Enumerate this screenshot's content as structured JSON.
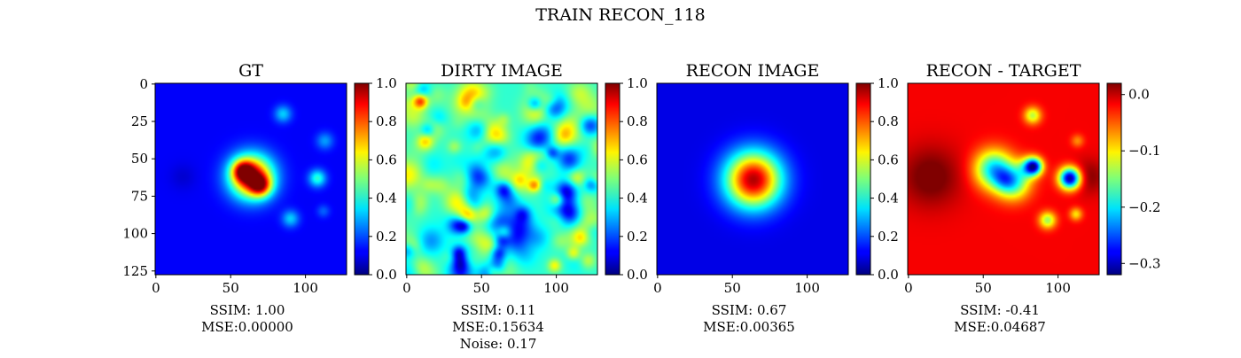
{
  "chart_data": {
    "type": "heatmap",
    "title": "TRAIN RECON_118",
    "colormap": "jet",
    "panels": [
      {
        "id": "gt",
        "title": "GT",
        "axis_ticks": [
          0,
          50,
          100
        ],
        "y_ticks": [
          0,
          25,
          50,
          75,
          100,
          125
        ],
        "show_y_ticks": true,
        "colorbar": {
          "range": [
            0.0,
            1.0
          ],
          "ticks": [
            0.0,
            0.2,
            0.4,
            0.6,
            0.8,
            1.0
          ],
          "tick_labels": [
            "0.0",
            "0.2",
            "0.4",
            "0.6",
            "0.8",
            "1.0"
          ]
        },
        "caption": [
          "SSIM: 1.00",
          "MSE:0.00000"
        ],
        "background": 0.12,
        "features": [
          {
            "cx": 64,
            "cy": 62,
            "r": 10,
            "v": 0.95
          },
          {
            "cx": 58,
            "cy": 58,
            "r": 5,
            "v": 0.55
          },
          {
            "cx": 70,
            "cy": 68,
            "r": 5,
            "v": 0.55
          },
          {
            "cx": 85,
            "cy": 20,
            "r": 4,
            "v": 0.33
          },
          {
            "cx": 108,
            "cy": 63,
            "r": 4,
            "v": 0.42
          },
          {
            "cx": 113,
            "cy": 38,
            "r": 4,
            "v": 0.28
          },
          {
            "cx": 90,
            "cy": 90,
            "r": 4,
            "v": 0.33
          },
          {
            "cx": 112,
            "cy": 85,
            "r": 3,
            "v": 0.22
          },
          {
            "cx": 18,
            "cy": 62,
            "r": 6,
            "v": 0.08
          }
        ]
      },
      {
        "id": "dirty",
        "title": "DIRTY IMAGE",
        "axis_ticks": [
          0,
          50,
          100
        ],
        "y_ticks": [
          0,
          25,
          50,
          75,
          100,
          125
        ],
        "show_y_ticks": false,
        "colorbar": {
          "range": [
            0.0,
            1.0
          ],
          "ticks": [
            0.0,
            0.2,
            0.4,
            0.6,
            0.8,
            1.0
          ],
          "tick_labels": [
            "0.0",
            "0.2",
            "0.4",
            "0.6",
            "0.8",
            "1.0"
          ]
        },
        "caption": [
          "SSIM: 0.11",
          "MSE:0.15634",
          "Noise: 0.17"
        ],
        "background": 0.42,
        "noise": {
          "seed": 118,
          "count": 150,
          "amp": 0.28,
          "r": 5
        },
        "features": [
          {
            "cx": 64,
            "cy": 58,
            "r": 6,
            "v": 0.55
          }
        ]
      },
      {
        "id": "recon",
        "title": "RECON IMAGE",
        "axis_ticks": [
          0,
          50,
          100
        ],
        "y_ticks": [
          0,
          25,
          50,
          75,
          100,
          125
        ],
        "show_y_ticks": false,
        "colorbar": {
          "range": [
            0.0,
            1.0
          ],
          "ticks": [
            0.0,
            0.2,
            0.4,
            0.6,
            0.8,
            1.0
          ],
          "tick_labels": [
            "0.0",
            "0.2",
            "0.4",
            "0.6",
            "0.8",
            "1.0"
          ]
        },
        "caption": [
          "SSIM: 0.67",
          "MSE:0.00365"
        ],
        "background": 0.1,
        "features": [
          {
            "cx": 64,
            "cy": 64,
            "r": 13,
            "v": 0.95
          }
        ]
      },
      {
        "id": "diff",
        "title": "RECON - TARGET",
        "axis_ticks": [
          0,
          50,
          100
        ],
        "y_ticks": [
          0,
          25,
          50,
          75,
          100,
          125
        ],
        "show_y_ticks": false,
        "colorbar": {
          "range": [
            -0.32,
            0.02
          ],
          "ticks": [
            0.0,
            -0.1,
            -0.2,
            -0.3
          ],
          "tick_labels": [
            "0.0",
            "−0.1",
            "−0.2",
            "−0.3"
          ]
        },
        "caption": [
          "SSIM: -0.41",
          "MSE:0.04687"
        ],
        "background": -0.02,
        "features": [
          {
            "cx": 15,
            "cy": 62,
            "r": 14,
            "v": 0.03
          },
          {
            "cx": 120,
            "cy": 62,
            "r": 8,
            "v": 0.02
          },
          {
            "cx": 57,
            "cy": 57,
            "r": 9,
            "v": -0.2
          },
          {
            "cx": 70,
            "cy": 66,
            "r": 8,
            "v": -0.17
          },
          {
            "cx": 80,
            "cy": 56,
            "r": 5,
            "v": -0.12
          },
          {
            "cx": 84,
            "cy": 55,
            "r": 4,
            "v": -0.24
          },
          {
            "cx": 108,
            "cy": 63,
            "r": 5,
            "v": -0.32
          },
          {
            "cx": 83,
            "cy": 21,
            "r": 4,
            "v": -0.13
          },
          {
            "cx": 93,
            "cy": 91,
            "r": 4,
            "v": -0.14
          },
          {
            "cx": 112,
            "cy": 87,
            "r": 3,
            "v": -0.1
          },
          {
            "cx": 113,
            "cy": 38,
            "r": 3,
            "v": -0.07
          },
          {
            "cx": 64,
            "cy": 64,
            "r": 5,
            "v": -0.06
          }
        ]
      }
    ]
  }
}
